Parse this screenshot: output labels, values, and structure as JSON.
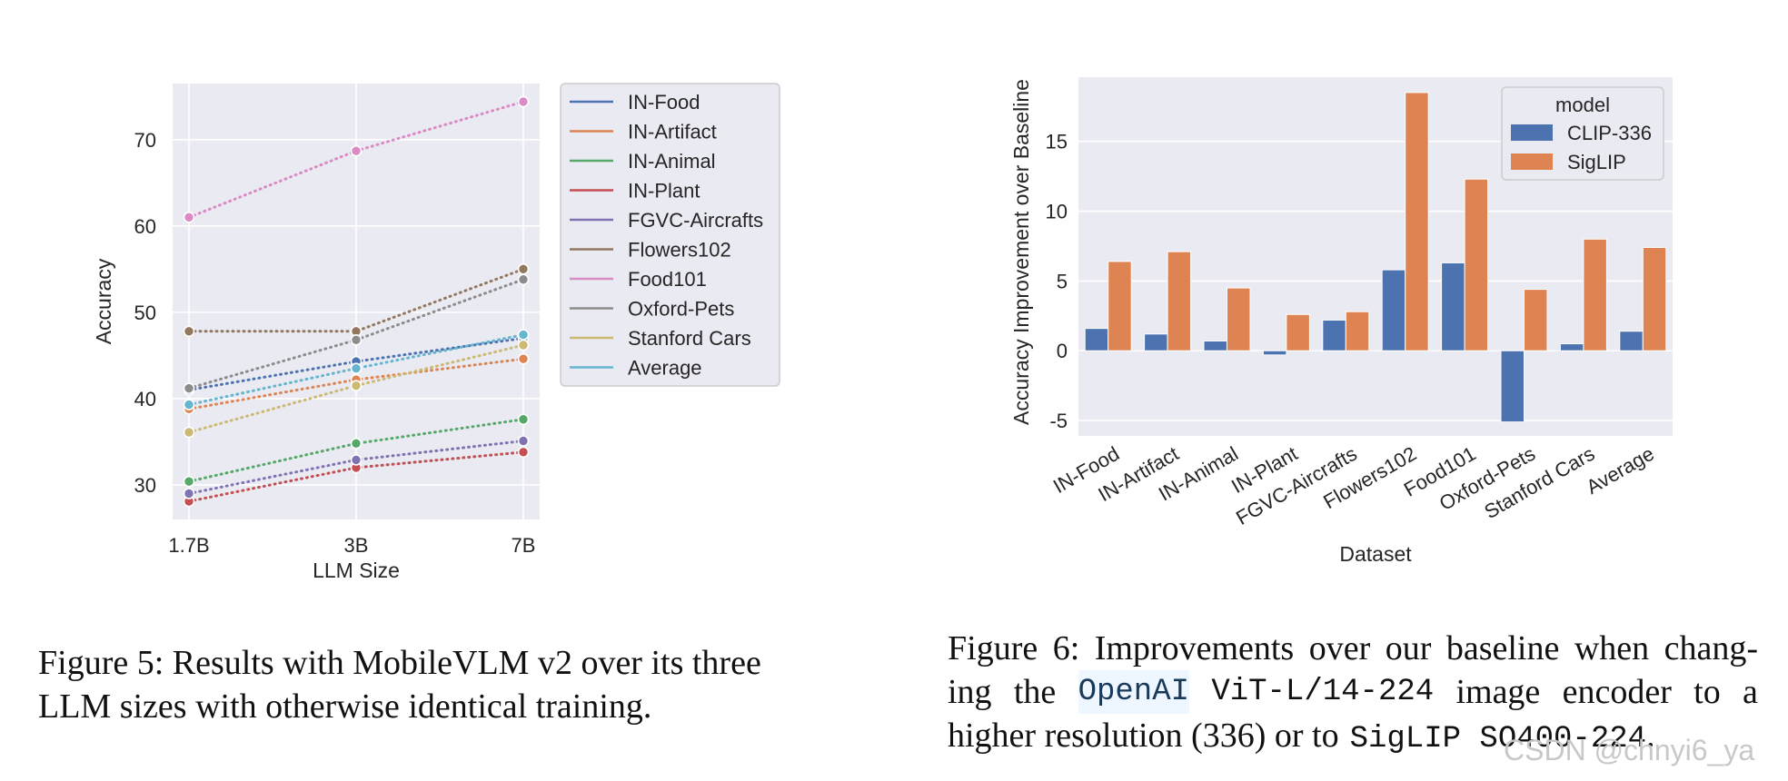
{
  "chart_data": [
    {
      "type": "line",
      "xlabel": "LLM Size",
      "ylabel": "Accuracy",
      "categories": [
        "1.7B",
        "3B",
        "7B"
      ],
      "ylim": [
        26,
        76.5
      ],
      "yticks": [
        30,
        40,
        50,
        60,
        70
      ],
      "grid": true,
      "line_style": "dotted",
      "legend_placement": "right-outside",
      "series": [
        {
          "name": "IN-Food",
          "color": "#4c72b0",
          "values": [
            41.0,
            44.3,
            47.0
          ]
        },
        {
          "name": "IN-Artifact",
          "color": "#dd8452",
          "values": [
            38.8,
            42.2,
            44.6
          ]
        },
        {
          "name": "IN-Animal",
          "color": "#55a868",
          "values": [
            30.4,
            34.8,
            37.6
          ]
        },
        {
          "name": "IN-Plant",
          "color": "#c44e52",
          "values": [
            28.1,
            32.0,
            33.8
          ]
        },
        {
          "name": "FGVC-Aircrafts",
          "color": "#8172b3",
          "values": [
            29.0,
            32.9,
            35.1
          ]
        },
        {
          "name": "Flowers102",
          "color": "#937860",
          "values": [
            47.8,
            47.8,
            55.0
          ]
        },
        {
          "name": "Food101",
          "color": "#da8bc3",
          "values": [
            61.0,
            68.7,
            74.4
          ]
        },
        {
          "name": "Oxford-Pets",
          "color": "#8c8c8c",
          "values": [
            41.2,
            46.8,
            53.8
          ]
        },
        {
          "name": "Stanford Cars",
          "color": "#ccb974",
          "values": [
            36.1,
            41.5,
            46.2
          ]
        },
        {
          "name": "Average",
          "color": "#64b5cd",
          "values": [
            39.3,
            43.5,
            47.4
          ]
        }
      ]
    },
    {
      "type": "bar",
      "xlabel": "Dataset",
      "ylabel": "Accuracy Improvement over Baseline",
      "categories": [
        "IN-Food",
        "IN-Artifact",
        "IN-Animal",
        "IN-Plant",
        "FGVC-Aircrafts",
        "Flowers102",
        "Food101",
        "Oxford-Pets",
        "Stanford Cars",
        "Average"
      ],
      "ylim": [
        -6.1,
        19.6
      ],
      "yticks": [
        -5,
        0,
        5,
        10,
        15
      ],
      "grid": true,
      "legend_title": "model",
      "legend_placement": "top-right",
      "series": [
        {
          "name": "CLIP-336",
          "color": "#4c72b0",
          "values": [
            1.6,
            1.2,
            0.7,
            -0.3,
            2.2,
            5.8,
            6.3,
            -5.1,
            0.5,
            1.4
          ]
        },
        {
          "name": "SigLIP",
          "color": "#dd8452",
          "values": [
            6.4,
            7.1,
            4.5,
            2.6,
            2.8,
            18.5,
            12.3,
            4.4,
            8.0,
            7.4
          ]
        }
      ]
    }
  ],
  "captions": {
    "fig5": {
      "line1": "Figure 5: Results with MobileVLM v2 over its three",
      "line2": "LLM sizes with otherwise identical training."
    },
    "fig6": {
      "line1_words": [
        "Figure",
        "6:",
        "Improvements",
        "over",
        "our",
        "baseline",
        "when",
        "chang-"
      ],
      "line2_a": [
        "ing",
        "the"
      ],
      "line2_hl": "OpenAI",
      "line2_mono": "ViT-L/14-224",
      "line2_b": [
        "image",
        "encoder",
        "to",
        "a"
      ],
      "line3_a": "higher resolution (336) or to",
      "line3_mono": "SigLIP SO400-224",
      "line3_end": "."
    }
  },
  "watermark": "CSDN @chnyi6_ya"
}
